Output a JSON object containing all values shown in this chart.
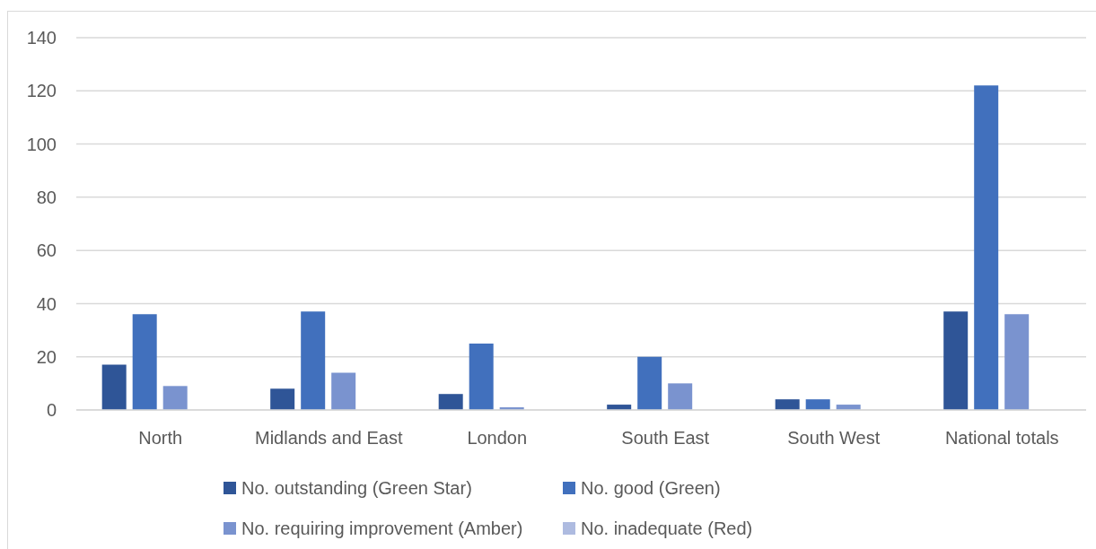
{
  "chart_data": {
    "type": "bar",
    "categories": [
      "North",
      "Midlands and East",
      "London",
      "South East",
      "South West",
      "National totals"
    ],
    "series": [
      {
        "name": "No. outstanding (Green Star)",
        "color": "#2f5597",
        "values": [
          17,
          8,
          6,
          2,
          4,
          37
        ]
      },
      {
        "name": "No. good (Green)",
        "color": "#4170bd",
        "values": [
          36,
          37,
          25,
          20,
          4,
          122
        ]
      },
      {
        "name": "No. requiring improvement (Amber)",
        "color": "#7a93cf",
        "values": [
          9,
          14,
          1,
          10,
          2,
          36
        ]
      },
      {
        "name": "No. inadequate (Red)",
        "color": "#aebbe0",
        "values": [
          0,
          0,
          0,
          0,
          0,
          0
        ]
      }
    ],
    "ylim": [
      0,
      140
    ],
    "yticks": [
      0,
      20,
      40,
      60,
      80,
      100,
      120,
      140
    ],
    "grid": "y",
    "legend": "bottom"
  }
}
